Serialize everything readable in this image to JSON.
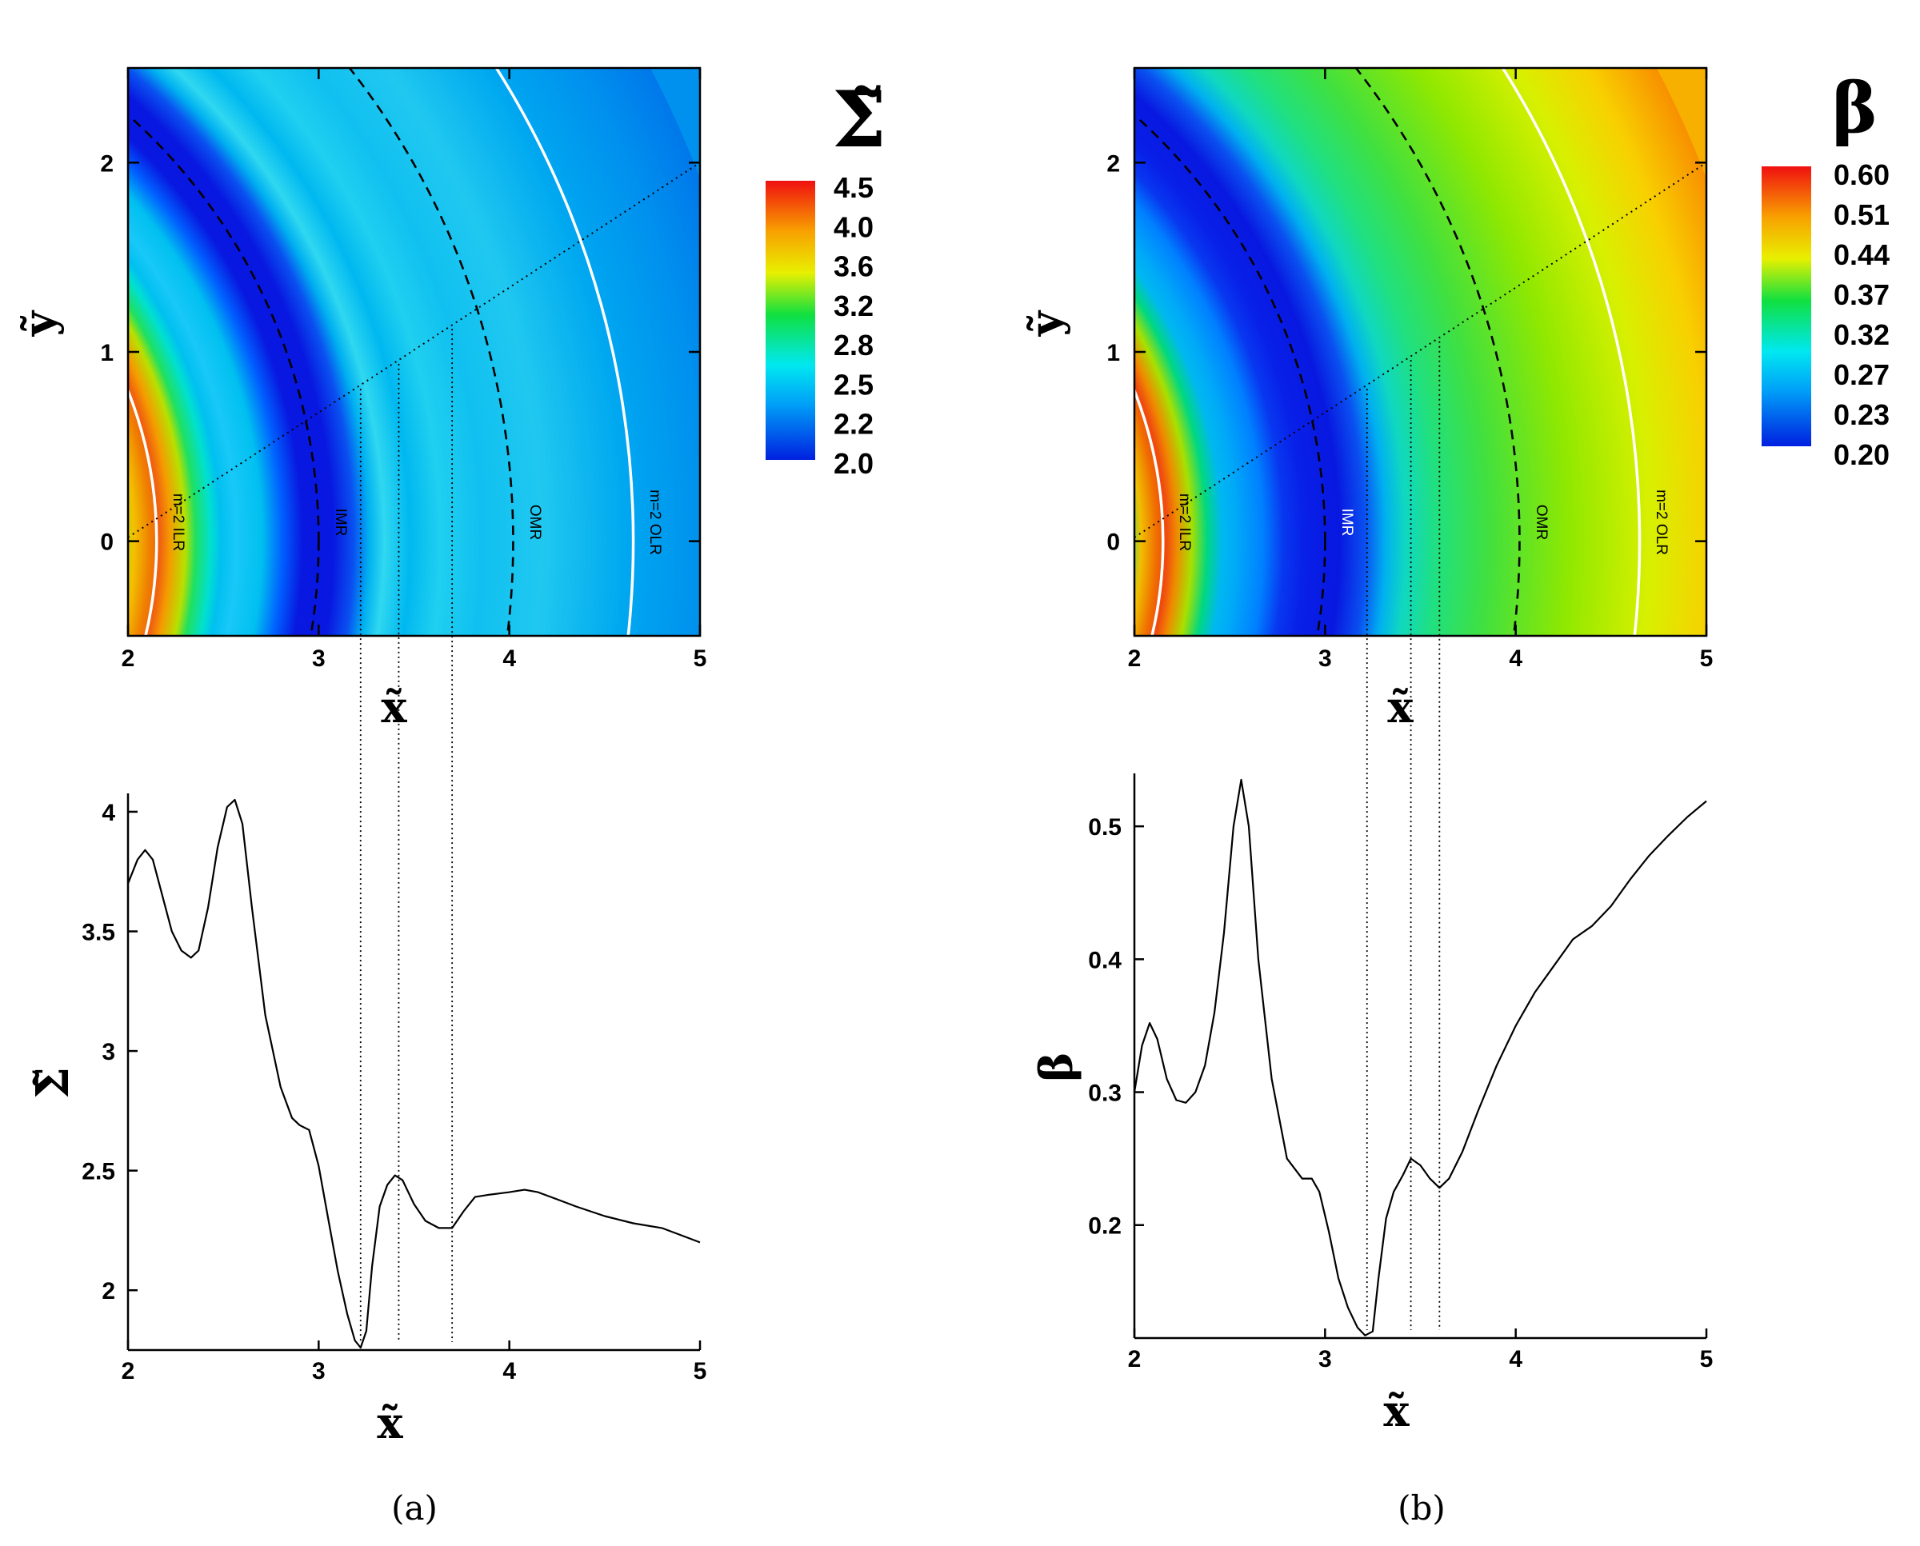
{
  "chart_data": [
    {
      "panel": "a-top",
      "type": "heatmap",
      "xlabel": "x̃",
      "ylabel": "ỹ",
      "xlim": [
        2,
        5
      ],
      "ylim": [
        -0.5,
        2.5
      ],
      "xticks": [
        "2",
        "3",
        "4",
        "5"
      ],
      "yticks": [
        "0",
        "1",
        "2"
      ],
      "colorbar": {
        "title": "Σ̃",
        "ticks": [
          "4.5",
          "4.0",
          "3.6",
          "3.2",
          "2.8",
          "2.5",
          "2.2",
          "2.0"
        ],
        "range": [
          2.0,
          4.5
        ]
      },
      "resonances": [
        {
          "label": "m=2 ILR",
          "r": 2.15,
          "style": "solid-white"
        },
        {
          "label": "IMR",
          "r": 3.0,
          "style": "dashed-black"
        },
        {
          "label": "OMR",
          "r": 4.02,
          "style": "dashed-black"
        },
        {
          "label": "m=2 OLR",
          "r": 4.65,
          "style": "solid-white"
        }
      ],
      "radial_line_through_origin": true,
      "marker_x": [
        3.22,
        3.42,
        3.7
      ]
    },
    {
      "panel": "a-bottom",
      "type": "line",
      "xlabel": "x̃",
      "ylabel": "Σ̃",
      "xlim": [
        2,
        5
      ],
      "ylim": [
        1.75,
        4.05
      ],
      "xticks": [
        "2",
        "3",
        "4",
        "5"
      ],
      "yticks": [
        "2",
        "2.5",
        "3",
        "3.5",
        "4"
      ],
      "x": [
        2.0,
        2.05,
        2.09,
        2.13,
        2.18,
        2.23,
        2.28,
        2.33,
        2.37,
        2.42,
        2.47,
        2.52,
        2.56,
        2.6,
        2.65,
        2.72,
        2.8,
        2.86,
        2.9,
        2.95,
        3.0,
        3.05,
        3.1,
        3.15,
        3.19,
        3.22,
        3.25,
        3.28,
        3.32,
        3.36,
        3.4,
        3.44,
        3.5,
        3.56,
        3.63,
        3.7,
        3.76,
        3.82,
        3.9,
        4.0,
        4.08,
        4.15,
        4.25,
        4.35,
        4.5,
        4.65,
        4.8,
        4.9,
        5.0
      ],
      "y": [
        3.7,
        3.8,
        3.84,
        3.8,
        3.65,
        3.5,
        3.42,
        3.39,
        3.42,
        3.6,
        3.85,
        4.02,
        4.05,
        3.95,
        3.6,
        3.15,
        2.85,
        2.72,
        2.69,
        2.67,
        2.52,
        2.3,
        2.08,
        1.9,
        1.79,
        1.76,
        1.83,
        2.1,
        2.35,
        2.44,
        2.48,
        2.46,
        2.36,
        2.29,
        2.26,
        2.26,
        2.33,
        2.39,
        2.4,
        2.41,
        2.42,
        2.41,
        2.38,
        2.35,
        2.31,
        2.28,
        2.26,
        2.23,
        2.2
      ],
      "marker_x": [
        3.22,
        3.42,
        3.7
      ]
    },
    {
      "panel": "b-top",
      "type": "heatmap",
      "xlabel": "x̃",
      "ylabel": "ỹ",
      "xlim": [
        2,
        5
      ],
      "ylim": [
        -0.5,
        2.5
      ],
      "xticks": [
        "2",
        "3",
        "4",
        "5"
      ],
      "yticks": [
        "0",
        "1",
        "2"
      ],
      "colorbar": {
        "title": "β",
        "ticks": [
          "0.60",
          "0.51",
          "0.44",
          "0.37",
          "0.32",
          "0.27",
          "0.23",
          "0.20"
        ],
        "range": [
          0.2,
          0.6
        ]
      },
      "resonances": [
        {
          "label": "m=2 ILR",
          "r": 2.15,
          "style": "solid-white"
        },
        {
          "label": "IMR",
          "r": 3.0,
          "style": "dashed-black"
        },
        {
          "label": "OMR",
          "r": 4.02,
          "style": "dashed-black"
        },
        {
          "label": "m=2 OLR",
          "r": 4.65,
          "style": "solid-white"
        }
      ],
      "radial_line_through_origin": true,
      "marker_x": [
        3.22,
        3.45,
        3.6
      ]
    },
    {
      "panel": "b-bottom",
      "type": "line",
      "xlabel": "x̃",
      "ylabel": "β",
      "xlim": [
        2,
        5
      ],
      "ylim": [
        0.115,
        0.535
      ],
      "xticks": [
        "2",
        "3",
        "4",
        "5"
      ],
      "yticks": [
        "0.2",
        "0.3",
        "0.4",
        "0.5"
      ],
      "x": [
        2.0,
        2.04,
        2.08,
        2.12,
        2.17,
        2.22,
        2.27,
        2.32,
        2.37,
        2.42,
        2.47,
        2.52,
        2.56,
        2.6,
        2.65,
        2.72,
        2.8,
        2.88,
        2.93,
        2.97,
        3.02,
        3.07,
        3.12,
        3.17,
        3.21,
        3.25,
        3.28,
        3.32,
        3.36,
        3.41,
        3.45,
        3.5,
        3.55,
        3.6,
        3.65,
        3.72,
        3.8,
        3.9,
        4.0,
        4.1,
        4.2,
        4.3,
        4.4,
        4.5,
        4.6,
        4.7,
        4.8,
        4.9,
        5.0
      ],
      "y": [
        0.3,
        0.335,
        0.352,
        0.34,
        0.31,
        0.294,
        0.292,
        0.3,
        0.32,
        0.36,
        0.42,
        0.5,
        0.535,
        0.5,
        0.4,
        0.31,
        0.25,
        0.235,
        0.235,
        0.225,
        0.195,
        0.16,
        0.138,
        0.123,
        0.117,
        0.12,
        0.16,
        0.205,
        0.225,
        0.238,
        0.25,
        0.245,
        0.235,
        0.228,
        0.235,
        0.255,
        0.285,
        0.32,
        0.35,
        0.375,
        0.395,
        0.415,
        0.425,
        0.44,
        0.46,
        0.478,
        0.493,
        0.507,
        0.519
      ],
      "marker_x": [
        3.22,
        3.45,
        3.6
      ]
    }
  ],
  "captions": {
    "a": "(a)",
    "b": "(b)"
  }
}
